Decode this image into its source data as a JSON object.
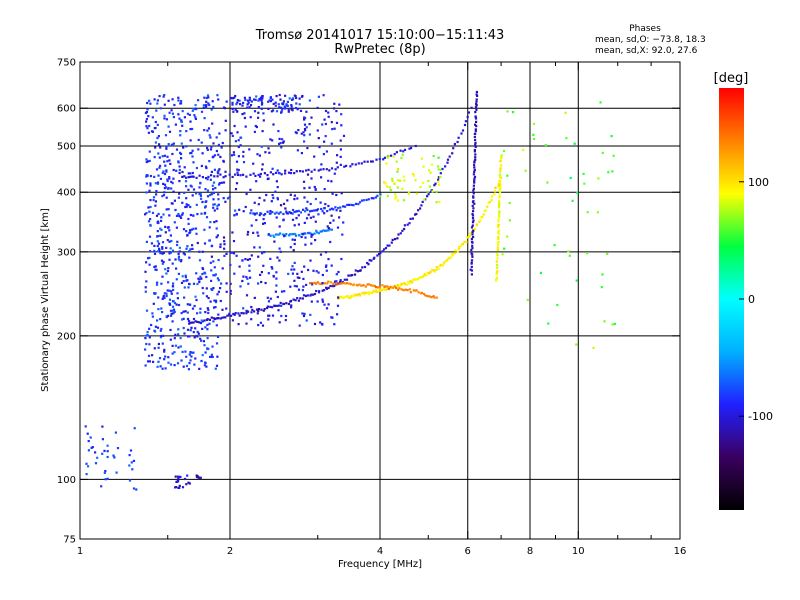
{
  "chart_data": {
    "type": "scatter",
    "title": "Tromsø 20141017 15:10:00−15:11:43",
    "subtitle": "RwPretec (8p)",
    "phase_header": "Phases",
    "phase_line_o": "mean, sd,O:  −73.8, 18.3",
    "phase_line_x": "mean, sd,X:  92.0, 27.6",
    "xlabel": "Frequency [MHz]",
    "ylabel": "Stationary phase Virtual Height [km]",
    "x_scale": "log",
    "y_scale": "log",
    "xlim": [
      1,
      16
    ],
    "ylim": [
      75,
      750
    ],
    "x_ticks": [
      {
        "v": 1,
        "label": "1"
      },
      {
        "v": 2,
        "label": "2"
      },
      {
        "v": 4,
        "label": "4"
      },
      {
        "v": 6,
        "label": "6"
      },
      {
        "v": 8,
        "label": "8"
      },
      {
        "v": 10,
        "label": "10"
      },
      {
        "v": 16,
        "label": "16"
      }
    ],
    "x_minor_ticks": [
      1.5,
      3,
      5,
      7,
      9,
      12,
      14
    ],
    "y_ticks": [
      {
        "v": 75,
        "label": "75"
      },
      {
        "v": 100,
        "label": "100"
      },
      {
        "v": 200,
        "label": "200"
      },
      {
        "v": 300,
        "label": "300"
      },
      {
        "v": 400,
        "label": "400"
      },
      {
        "v": 500,
        "label": "500"
      },
      {
        "v": 600,
        "label": "600"
      },
      {
        "v": 750,
        "label": "750"
      }
    ],
    "x_grid": [
      2,
      4,
      6,
      8,
      10
    ],
    "y_grid": [
      100,
      200,
      300,
      400,
      500,
      600
    ],
    "grid": true,
    "colorbar": {
      "label": "[deg]",
      "range": [
        -180,
        180
      ],
      "ticks": [
        {
          "v": 100,
          "label": "100"
        },
        {
          "v": 0,
          "label": "0"
        },
        {
          "v": -100,
          "label": "-100"
        }
      ],
      "colors": [
        "#000000",
        "#3a0060",
        "#2020ff",
        "#00b0ff",
        "#00ffff",
        "#00ff40",
        "#ffff00",
        "#ff8000",
        "#ff0000"
      ],
      "placement": "right"
    },
    "features": [
      {
        "kind": "trace",
        "name": "O-mode F2 trace",
        "phase": -105,
        "from": [
          1.65,
          212
        ],
        "to": [
          6.1,
          600
        ],
        "mid_freq": 4.2,
        "points": 160
      },
      {
        "kind": "trace",
        "name": "X-mode F2 trace",
        "phase": 95,
        "from": [
          3.3,
          240
        ],
        "to": [
          7.0,
          430
        ],
        "mid_freq": 5.8,
        "points": 130
      },
      {
        "kind": "trace",
        "name": "Orange echo",
        "phase": 135,
        "from": [
          2.9,
          258
        ],
        "to": [
          5.2,
          240
        ],
        "mid_freq": 4.2,
        "points": 70
      },
      {
        "kind": "trace",
        "name": "Upper trace",
        "phase": -100,
        "from": [
          1.6,
          430
        ],
        "to": [
          4.7,
          500
        ],
        "mid_freq": 2.6,
        "points": 80
      },
      {
        "kind": "trace",
        "name": "Second hop arc",
        "phase": -80,
        "from": [
          2.2,
          360
        ],
        "to": [
          4.0,
          395
        ],
        "mid_freq": 3.0,
        "points": 60
      },
      {
        "kind": "trace",
        "name": "Vertical O cusp",
        "phase": -110,
        "from": [
          6.1,
          270
        ],
        "to": [
          6.25,
          650
        ],
        "mid_freq": 6.2,
        "points": 80
      },
      {
        "kind": "trace",
        "name": "Vertical X cusp",
        "phase": 90,
        "from": [
          6.85,
          260
        ],
        "to": [
          7.0,
          480
        ],
        "mid_freq": 6.9,
        "points": 60
      },
      {
        "kind": "trace",
        "name": "Cyan arc",
        "phase": -60,
        "from": [
          2.4,
          325
        ],
        "to": [
          3.2,
          335
        ],
        "mid_freq": 2.8,
        "points": 40
      },
      {
        "kind": "cluster",
        "name": "Low spread",
        "phase": -85,
        "f": [
          1.35,
          1.9
        ],
        "h": [
          170,
          640
        ],
        "n": 700
      },
      {
        "kind": "cluster",
        "name": "Mid spread",
        "phase": -95,
        "f": [
          1.9,
          3.4
        ],
        "h": [
          210,
          640
        ],
        "n": 450
      },
      {
        "kind": "cluster",
        "name": "E-region",
        "phase": -80,
        "f": [
          1.0,
          1.3
        ],
        "h": [
          95,
          130
        ],
        "n": 40
      },
      {
        "kind": "cluster",
        "name": "Sporadic low",
        "phase": -105,
        "f": [
          1.55,
          1.75
        ],
        "h": [
          96,
          102
        ],
        "n": 25
      },
      {
        "kind": "cluster",
        "name": "Upper green X",
        "phase": 80,
        "f": [
          4.0,
          5.3
        ],
        "h": [
          380,
          480
        ],
        "n": 60
      },
      {
        "kind": "cluster",
        "name": "Scattered high freq",
        "phase": 60,
        "f": [
          7.0,
          12.0
        ],
        "h": [
          180,
          620
        ],
        "n": 50
      },
      {
        "kind": "cluster",
        "name": "Top cluster",
        "phase": -90,
        "f": [
          2.0,
          2.8
        ],
        "h": [
          590,
          640
        ],
        "n": 80
      }
    ]
  }
}
